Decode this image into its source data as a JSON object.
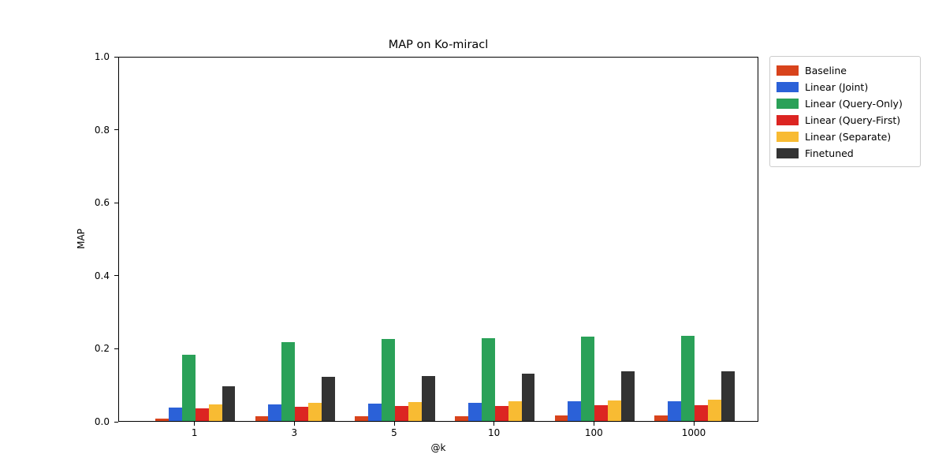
{
  "chart_data": {
    "type": "bar",
    "title": "MAP on Ko-miracl",
    "xlabel": "@k",
    "ylabel": "MAP",
    "categories": [
      "1",
      "3",
      "5",
      "10",
      "100",
      "1000"
    ],
    "series": [
      {
        "name": "Baseline",
        "color": "#d8431c",
        "values": [
          0.006,
          0.012,
          0.012,
          0.014,
          0.015,
          0.016
        ]
      },
      {
        "name": "Linear (Joint)",
        "color": "#2b61d8",
        "values": [
          0.036,
          0.045,
          0.048,
          0.05,
          0.054,
          0.055
        ]
      },
      {
        "name": "Linear (Query-Only)",
        "color": "#2aa158",
        "values": [
          0.182,
          0.215,
          0.224,
          0.226,
          0.231,
          0.233
        ]
      },
      {
        "name": "Linear (Query-First)",
        "color": "#dc2522",
        "values": [
          0.034,
          0.039,
          0.041,
          0.042,
          0.043,
          0.044
        ]
      },
      {
        "name": "Linear (Separate)",
        "color": "#f8bb33",
        "values": [
          0.045,
          0.05,
          0.052,
          0.054,
          0.056,
          0.058
        ]
      },
      {
        "name": "Finetuned",
        "color": "#333333",
        "values": [
          0.095,
          0.12,
          0.124,
          0.129,
          0.136,
          0.136
        ]
      }
    ],
    "ylim": [
      0.0,
      1.0
    ],
    "yticks": [
      "0.0",
      "0.2",
      "0.4",
      "0.6",
      "0.8",
      "1.0"
    ],
    "grid": false,
    "legend_position": "outside-upper-right",
    "frame_color": "#000000",
    "legend_border_color": "#cccccc"
  }
}
